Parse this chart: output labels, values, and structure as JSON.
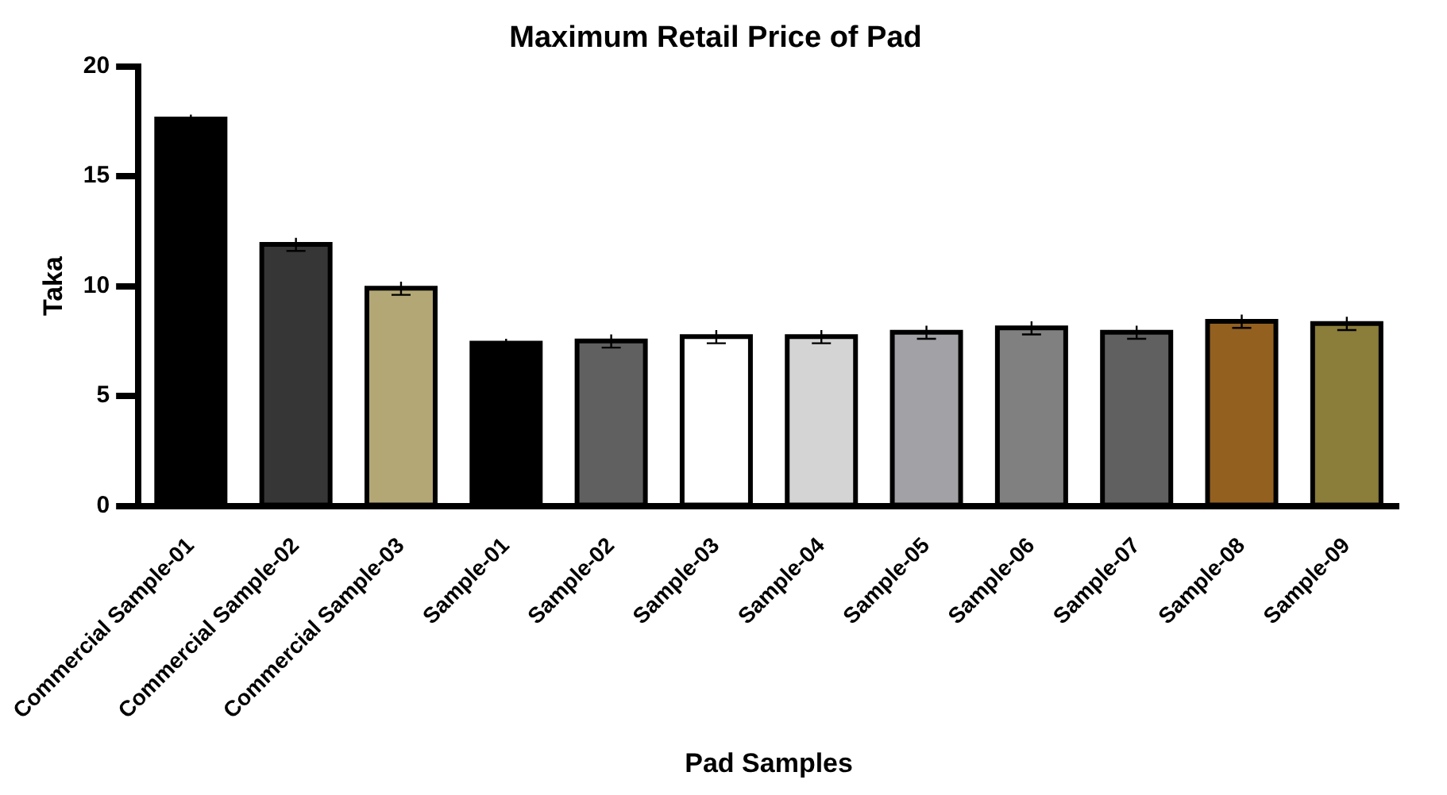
{
  "chart_data": {
    "type": "bar",
    "title": "Maximum Retail Price of Pad",
    "xlabel": "Pad Samples",
    "ylabel": "Taka",
    "categories": [
      "Commercial Sample-01",
      "Commercial Sample-02",
      "Commercial Sample-03",
      "Sample-01",
      "Sample-02",
      "Sample-03",
      "Sample-04",
      "Sample-05",
      "Sample-06",
      "Sample-07",
      "Sample-08",
      "Sample-09"
    ],
    "values": [
      17.6,
      11.9,
      9.9,
      7.4,
      7.5,
      7.7,
      7.7,
      7.9,
      8.1,
      7.9,
      8.4,
      8.3
    ],
    "errors": [
      0.2,
      0.3,
      0.3,
      0.2,
      0.3,
      0.3,
      0.3,
      0.3,
      0.3,
      0.3,
      0.3,
      0.3
    ],
    "colors": [
      "#000000",
      "#363636",
      "#b3a775",
      "#000000",
      "#606060",
      "#ffffff",
      "#d4d4d4",
      "#a2a2a6",
      "#808080",
      "#606060",
      "#936020",
      "#8b7d3a"
    ],
    "ylim": [
      0,
      20
    ],
    "yticks": [
      0,
      5,
      10,
      15,
      20
    ],
    "grid": false,
    "legend": false
  }
}
